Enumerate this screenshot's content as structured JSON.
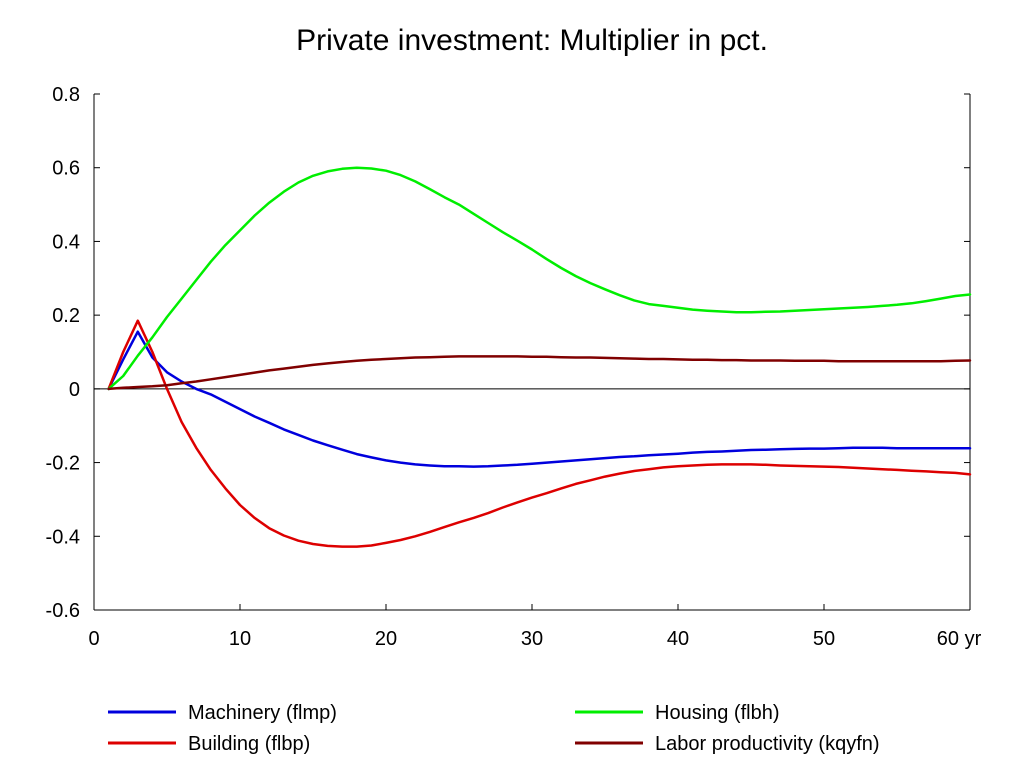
{
  "chart_data": {
    "type": "line",
    "title": "Private investment: Multiplier in pct.",
    "xlabel": "",
    "ylabel": "",
    "x_unit": "yr",
    "xlim": [
      0,
      60
    ],
    "ylim": [
      -0.6,
      0.8
    ],
    "x_ticks": [
      0,
      10,
      20,
      30,
      40,
      50,
      60
    ],
    "y_ticks": [
      -0.6,
      -0.4,
      -0.2,
      0,
      0.2,
      0.4,
      0.6,
      0.8
    ],
    "y_tick_labels": [
      "-0.6",
      "-0.4",
      "-0.2",
      "0",
      "0.2",
      "0.4",
      "0.6",
      "0.8"
    ],
    "x_tick_labels": [
      "0",
      "10",
      "20",
      "30",
      "40",
      "50",
      "60 yr"
    ],
    "grid": false,
    "zero_line": true,
    "legend_position": "bottom",
    "x": [
      1,
      2,
      3,
      4,
      5,
      6,
      7,
      8,
      9,
      10,
      11,
      12,
      13,
      14,
      15,
      16,
      17,
      18,
      19,
      20,
      21,
      22,
      23,
      24,
      25,
      26,
      27,
      28,
      29,
      30,
      31,
      32,
      33,
      34,
      35,
      36,
      37,
      38,
      39,
      40,
      41,
      42,
      43,
      44,
      45,
      46,
      47,
      48,
      49,
      50,
      51,
      52,
      53,
      54,
      55,
      56,
      57,
      58,
      59,
      60
    ],
    "series": [
      {
        "name": "Machinery (flmp)",
        "color": "#0000dd",
        "values": [
          0.0,
          0.08,
          0.155,
          0.085,
          0.045,
          0.02,
          0.0,
          -0.015,
          -0.035,
          -0.055,
          -0.075,
          -0.092,
          -0.11,
          -0.125,
          -0.14,
          -0.153,
          -0.165,
          -0.177,
          -0.186,
          -0.194,
          -0.2,
          -0.205,
          -0.208,
          -0.21,
          -0.21,
          -0.211,
          -0.21,
          -0.208,
          -0.206,
          -0.203,
          -0.2,
          -0.197,
          -0.194,
          -0.191,
          -0.188,
          -0.185,
          -0.183,
          -0.18,
          -0.178,
          -0.176,
          -0.173,
          -0.171,
          -0.17,
          -0.168,
          -0.166,
          -0.165,
          -0.164,
          -0.163,
          -0.162,
          -0.162,
          -0.161,
          -0.16,
          -0.16,
          -0.16,
          -0.161,
          -0.161,
          -0.161,
          -0.161,
          -0.161,
          -0.161
        ]
      },
      {
        "name": "Building (flbp)",
        "color": "#dd0000",
        "values": [
          0.0,
          0.1,
          0.185,
          0.1,
          0.0,
          -0.09,
          -0.16,
          -0.22,
          -0.27,
          -0.315,
          -0.35,
          -0.378,
          -0.398,
          -0.412,
          -0.421,
          -0.426,
          -0.428,
          -0.428,
          -0.425,
          -0.418,
          -0.41,
          -0.4,
          -0.388,
          -0.375,
          -0.362,
          -0.35,
          -0.337,
          -0.322,
          -0.308,
          -0.295,
          -0.283,
          -0.27,
          -0.258,
          -0.248,
          -0.238,
          -0.23,
          -0.223,
          -0.218,
          -0.213,
          -0.21,
          -0.208,
          -0.206,
          -0.205,
          -0.205,
          -0.205,
          -0.206,
          -0.208,
          -0.209,
          -0.21,
          -0.211,
          -0.212,
          -0.214,
          -0.216,
          -0.218,
          -0.22,
          -0.222,
          -0.224,
          -0.226,
          -0.228,
          -0.232
        ]
      },
      {
        "name": "Housing (flbh)",
        "color": "#00ee00",
        "values": [
          0.0,
          0.035,
          0.09,
          0.14,
          0.195,
          0.245,
          0.295,
          0.345,
          0.39,
          0.43,
          0.47,
          0.505,
          0.535,
          0.56,
          0.578,
          0.59,
          0.597,
          0.6,
          0.598,
          0.592,
          0.58,
          0.563,
          0.542,
          0.52,
          0.5,
          0.475,
          0.45,
          0.425,
          0.402,
          0.378,
          0.352,
          0.328,
          0.306,
          0.287,
          0.27,
          0.254,
          0.24,
          0.23,
          0.225,
          0.22,
          0.215,
          0.212,
          0.21,
          0.208,
          0.208,
          0.209,
          0.21,
          0.212,
          0.214,
          0.216,
          0.218,
          0.22,
          0.222,
          0.225,
          0.228,
          0.232,
          0.238,
          0.245,
          0.252,
          0.256
        ]
      },
      {
        "name": "Labor productivity (kqyfn)",
        "color": "#800000",
        "values": [
          0.0,
          0.003,
          0.005,
          0.007,
          0.01,
          0.015,
          0.02,
          0.026,
          0.032,
          0.038,
          0.044,
          0.05,
          0.055,
          0.06,
          0.065,
          0.069,
          0.073,
          0.076,
          0.079,
          0.081,
          0.083,
          0.085,
          0.086,
          0.087,
          0.088,
          0.088,
          0.088,
          0.088,
          0.088,
          0.087,
          0.087,
          0.086,
          0.085,
          0.085,
          0.084,
          0.083,
          0.082,
          0.081,
          0.081,
          0.08,
          0.079,
          0.079,
          0.078,
          0.078,
          0.077,
          0.077,
          0.077,
          0.076,
          0.076,
          0.076,
          0.075,
          0.075,
          0.075,
          0.075,
          0.075,
          0.075,
          0.075,
          0.075,
          0.076,
          0.077
        ]
      }
    ]
  }
}
